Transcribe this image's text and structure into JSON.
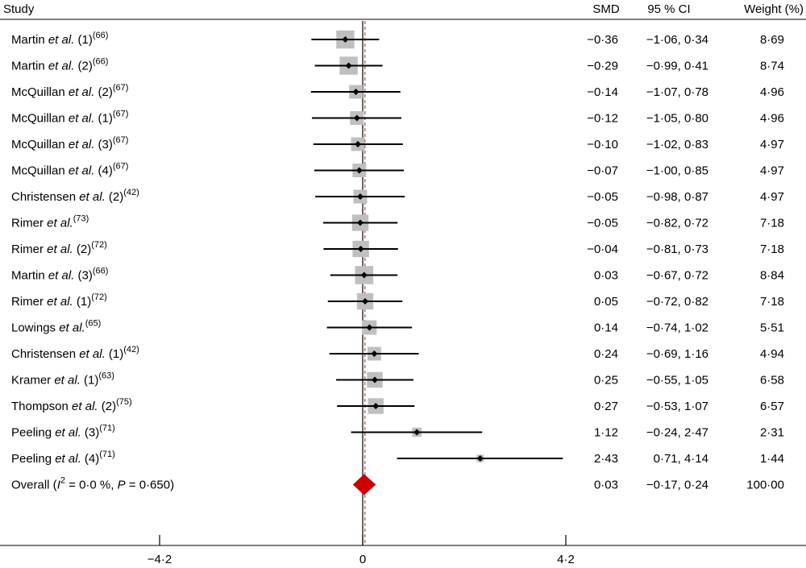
{
  "chart_data": {
    "type": "forest",
    "headers": {
      "study": "Study",
      "smd": "SMD",
      "ci": "95 % CI",
      "weight": "Weight (%)"
    },
    "xaxis": {
      "ticks": [
        {
          "value": -4.2,
          "label": "−4·2"
        },
        {
          "value": 0,
          "label": "0"
        },
        {
          "value": 4.2,
          "label": "4·2"
        }
      ]
    },
    "reference_line": 0,
    "studies": [
      {
        "author": "Martin",
        "suffix": " (1)",
        "ref": "(66)",
        "smd": -0.36,
        "lo": -1.06,
        "hi": 0.34,
        "weight": 8.69,
        "smd_text": "−0·36",
        "ci_text": "−1·06, 0·34",
        "weight_text": "8·69"
      },
      {
        "author": "Martin",
        "suffix": " (2)",
        "ref": "(66)",
        "smd": -0.29,
        "lo": -0.99,
        "hi": 0.41,
        "weight": 8.74,
        "smd_text": "−0·29",
        "ci_text": "−0·99, 0·41",
        "weight_text": "8·74"
      },
      {
        "author": "McQuillan",
        "suffix": " (2)",
        "ref": "(67)",
        "smd": -0.14,
        "lo": -1.07,
        "hi": 0.78,
        "weight": 4.96,
        "smd_text": "−0·14",
        "ci_text": "−1·07, 0·78",
        "weight_text": "4·96"
      },
      {
        "author": "McQuillan",
        "suffix": " (1)",
        "ref": "(67)",
        "smd": -0.12,
        "lo": -1.05,
        "hi": 0.8,
        "weight": 4.96,
        "smd_text": "−0·12",
        "ci_text": "−1·05, 0·80",
        "weight_text": "4·96"
      },
      {
        "author": "McQuillan",
        "suffix": " (3)",
        "ref": "(67)",
        "smd": -0.1,
        "lo": -1.02,
        "hi": 0.83,
        "weight": 4.97,
        "smd_text": "−0·10",
        "ci_text": "−1·02, 0·83",
        "weight_text": "4·97"
      },
      {
        "author": "McQuillan",
        "suffix": " (4)",
        "ref": "(67)",
        "smd": -0.07,
        "lo": -1.0,
        "hi": 0.85,
        "weight": 4.97,
        "smd_text": "−0·07",
        "ci_text": "−1·00, 0·85",
        "weight_text": "4·97"
      },
      {
        "author": "Christensen",
        "suffix": " (2)",
        "ref": "(42)",
        "smd": -0.05,
        "lo": -0.98,
        "hi": 0.87,
        "weight": 4.97,
        "smd_text": "−0·05",
        "ci_text": "−0·98, 0·87",
        "weight_text": "4·97"
      },
      {
        "author": "Rimer",
        "suffix": "",
        "ref": "(73)",
        "smd": -0.05,
        "lo": -0.82,
        "hi": 0.72,
        "weight": 7.18,
        "smd_text": "−0·05",
        "ci_text": "−0·82, 0·72",
        "weight_text": "7·18"
      },
      {
        "author": "Rimer",
        "suffix": " (2)",
        "ref": "(72)",
        "smd": -0.04,
        "lo": -0.81,
        "hi": 0.73,
        "weight": 7.18,
        "smd_text": "−0·04",
        "ci_text": "−0·81, 0·73",
        "weight_text": "7·18"
      },
      {
        "author": "Martin",
        "suffix": " (3)",
        "ref": "(66)",
        "smd": 0.03,
        "lo": -0.67,
        "hi": 0.72,
        "weight": 8.84,
        "smd_text": "0·03",
        "ci_text": "−0·67, 0·72",
        "weight_text": "8·84"
      },
      {
        "author": "Rimer",
        "suffix": " (1)",
        "ref": "(72)",
        "smd": 0.05,
        "lo": -0.72,
        "hi": 0.82,
        "weight": 7.18,
        "smd_text": "0·05",
        "ci_text": "−0·72, 0·82",
        "weight_text": "7·18"
      },
      {
        "author": "Lowings",
        "suffix": "",
        "ref": "(65)",
        "smd": 0.14,
        "lo": -0.74,
        "hi": 1.02,
        "weight": 5.51,
        "smd_text": "0·14",
        "ci_text": "−0·74, 1·02",
        "weight_text": "5·51"
      },
      {
        "author": "Christensen",
        "suffix": " (1)",
        "ref": "(42)",
        "smd": 0.24,
        "lo": -0.69,
        "hi": 1.16,
        "weight": 4.94,
        "smd_text": "0·24",
        "ci_text": "−0·69, 1·16",
        "weight_text": "4·94"
      },
      {
        "author": "Kramer",
        "suffix": " (1)",
        "ref": "(63)",
        "smd": 0.25,
        "lo": -0.55,
        "hi": 1.05,
        "weight": 6.58,
        "smd_text": "0·25",
        "ci_text": "−0·55, 1·05",
        "weight_text": "6·58"
      },
      {
        "author": "Thompson",
        "suffix": " (2)",
        "ref": "(75)",
        "smd": 0.27,
        "lo": -0.53,
        "hi": 1.07,
        "weight": 6.57,
        "smd_text": "0·27",
        "ci_text": "−0·53, 1·07",
        "weight_text": "6·57"
      },
      {
        "author": "Peeling",
        "suffix": " (3)",
        "ref": "(71)",
        "smd": 1.12,
        "lo": -0.24,
        "hi": 2.47,
        "weight": 2.31,
        "smd_text": "1·12",
        "ci_text": "−0·24, 2·47",
        "weight_text": "2·31"
      },
      {
        "author": "Peeling",
        "suffix": " (4)",
        "ref": "(71)",
        "smd": 2.43,
        "lo": 0.71,
        "hi": 4.14,
        "weight": 1.44,
        "smd_text": "2·43",
        "ci_text": "0·71, 4·14",
        "weight_text": "1·44"
      }
    ],
    "overall": {
      "label_prefix": "Overall (",
      "i2_symbol": "I",
      "i2_exp": "2",
      "i2_text": " = 0·0 %, ",
      "p_symbol": "P",
      "p_text": " = 0·650)",
      "smd": 0.03,
      "lo": -0.17,
      "hi": 0.24,
      "smd_text": "0·03",
      "ci_text": "−0·17, 0·24",
      "weight_text": "100·00"
    },
    "etal": "et al.",
    "colors": {
      "ci_line": "#000000",
      "weight_box": "#bfbfbf",
      "point": "#000000",
      "diamond": "#cc0000",
      "reference_line": "#000000",
      "overall_line": "#a0524d"
    }
  }
}
